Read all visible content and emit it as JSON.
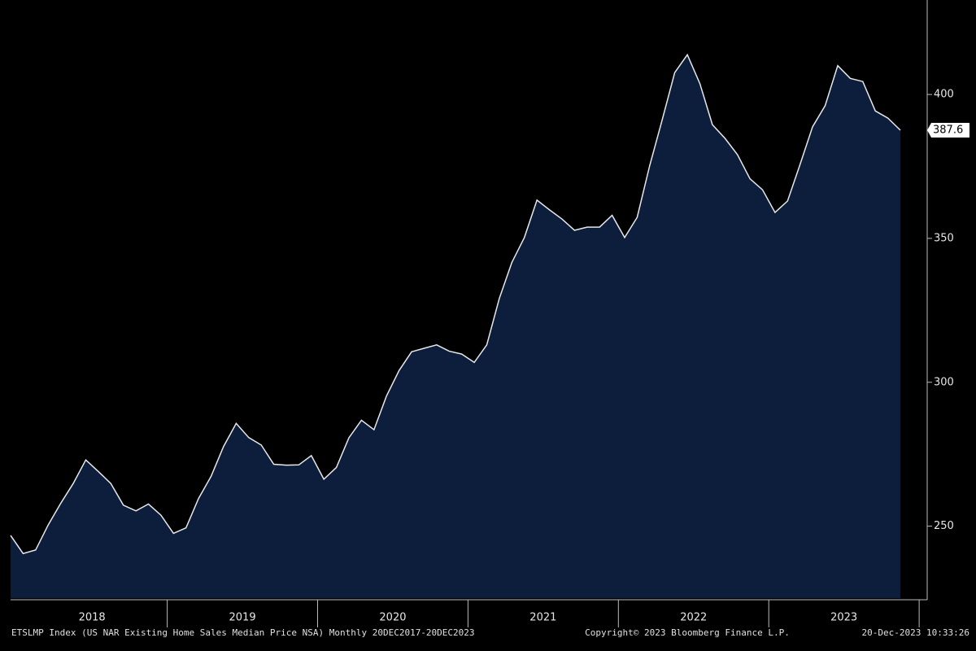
{
  "chart_data": {
    "type": "area",
    "footer_left": "ETSLMP Index (US NAR Existing Home Sales Median Price NSA) Monthly 20DEC2017-20DEC2023",
    "footer_center": "Copyright© 2023 Bloomberg Finance L.P.",
    "footer_right": "20-Dec-2023 10:33:26",
    "year_labels": [
      "2018",
      "2019",
      "2020",
      "2021",
      "2022",
      "2023"
    ],
    "color": "#0c1e3c",
    "line_color": "#e8e8e8",
    "values": [
      246.8,
      240.5,
      241.7,
      250.4,
      257.9,
      264.8,
      273.0,
      269.0,
      264.8,
      257.3,
      255.3,
      257.7,
      253.8,
      247.5,
      249.4,
      259.6,
      267.3,
      277.7,
      285.7,
      280.8,
      278.2,
      271.5,
      271.2,
      271.3,
      274.5,
      266.3,
      270.4,
      280.7,
      286.8,
      283.5,
      295.3,
      304.1,
      310.6,
      311.8,
      313.0,
      310.8,
      309.8,
      306.9,
      313.0,
      329.1,
      341.6,
      350.3,
      363.3,
      359.9,
      356.7,
      352.8,
      353.9,
      353.9,
      358.0,
      350.3,
      357.3,
      375.3,
      391.2,
      407.6,
      413.8,
      403.8,
      389.5,
      384.8,
      379.1,
      370.7,
      366.9,
      359.0,
      363.0,
      375.7,
      388.8,
      396.1,
      410.0,
      405.6,
      404.5,
      394.3,
      391.8,
      387.6
    ],
    "ylim": [
      225,
      430
    ],
    "yticks": [
      250,
      300,
      350,
      400
    ]
  }
}
